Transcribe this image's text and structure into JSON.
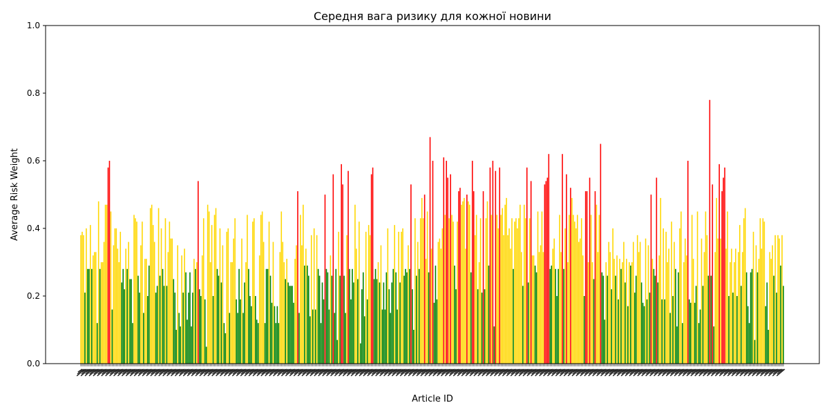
{
  "chart_data": {
    "type": "bar",
    "title": "Середня вага ризику для кожної новини",
    "xlabel": "Article ID",
    "ylabel": "Average Risk Weight",
    "ylim": [
      0,
      1.0
    ],
    "yticks": [
      0.0,
      0.2,
      0.4,
      0.6,
      0.8,
      1.0
    ],
    "grid": false,
    "colors": {
      "low": "#008000",
      "medium": "#FFD700",
      "high": "#FF0000"
    },
    "values": [
      0.38,
      0.39,
      0.38,
      0.21,
      0.4,
      0.28,
      0.28,
      0.41,
      0.28,
      0.32,
      0.33,
      0.33,
      0.12,
      0.48,
      0.28,
      0.3,
      0.3,
      0.36,
      0.47,
      0.47,
      0.58,
      0.6,
      0.45,
      0.16,
      0.35,
      0.4,
      0.4,
      0.34,
      0.3,
      0.39,
      0.24,
      0.28,
      0.22,
      0.34,
      0.28,
      0.36,
      0.25,
      0.25,
      0.12,
      0.44,
      0.43,
      0.42,
      0.26,
      0.21,
      0.35,
      0.42,
      0.15,
      0.31,
      0.31,
      0.2,
      0.29,
      0.46,
      0.47,
      0.41,
      0.36,
      0.21,
      0.23,
      0.46,
      0.26,
      0.4,
      0.28,
      0.23,
      0.43,
      0.23,
      0.33,
      0.42,
      0.37,
      0.37,
      0.25,
      0.21,
      0.1,
      0.35,
      0.15,
      0.11,
      0.32,
      0.21,
      0.34,
      0.27,
      0.13,
      0.21,
      0.27,
      0.11,
      0.21,
      0.31,
      0.28,
      0.3,
      0.54,
      0.22,
      0.2,
      0.32,
      0.43,
      0.19,
      0.05,
      0.47,
      0.45,
      0.3,
      0.41,
      0.2,
      0.44,
      0.46,
      0.28,
      0.26,
      0.4,
      0.24,
      0.35,
      0.12,
      0.09,
      0.39,
      0.4,
      0.15,
      0.3,
      0.3,
      0.37,
      0.43,
      0.19,
      0.15,
      0.28,
      0.19,
      0.37,
      0.15,
      0.24,
      0.3,
      0.44,
      0.28,
      0.2,
      0.17,
      0.42,
      0.43,
      0.2,
      0.13,
      0.12,
      0.32,
      0.44,
      0.45,
      0.36,
      0.12,
      0.28,
      0.28,
      0.42,
      0.26,
      0.18,
      0.36,
      0.17,
      0.12,
      0.17,
      0.12,
      0.33,
      0.45,
      0.36,
      0.3,
      0.25,
      0.31,
      0.24,
      0.23,
      0.23,
      0.23,
      0.18,
      0.31,
      0.35,
      0.51,
      0.15,
      0.44,
      0.35,
      0.47,
      0.29,
      0.34,
      0.29,
      0.26,
      0.14,
      0.38,
      0.16,
      0.4,
      0.16,
      0.38,
      0.28,
      0.26,
      0.12,
      0.24,
      0.19,
      0.5,
      0.28,
      0.27,
      0.16,
      0.32,
      0.26,
      0.56,
      0.15,
      0.28,
      0.07,
      0.39,
      0.26,
      0.59,
      0.53,
      0.26,
      0.15,
      0.38,
      0.57,
      0.28,
      0.19,
      0.28,
      0.24,
      0.47,
      0.34,
      0.25,
      0.42,
      0.06,
      0.22,
      0.27,
      0.14,
      0.39,
      0.19,
      0.41,
      0.38,
      0.56,
      0.58,
      0.25,
      0.28,
      0.25,
      0.3,
      0.24,
      0.35,
      0.16,
      0.24,
      0.16,
      0.27,
      0.4,
      0.22,
      0.15,
      0.24,
      0.28,
      0.41,
      0.27,
      0.16,
      0.39,
      0.24,
      0.39,
      0.4,
      0.26,
      0.28,
      0.27,
      0.35,
      0.28,
      0.53,
      0.22,
      0.1,
      0.43,
      0.26,
      0.36,
      0.28,
      0.43,
      0.49,
      0.43,
      0.5,
      0.31,
      0.45,
      0.27,
      0.67,
      0.34,
      0.6,
      0.18,
      0.29,
      0.19,
      0.36,
      0.37,
      0.34,
      0.4,
      0.61,
      0.44,
      0.6,
      0.55,
      0.43,
      0.56,
      0.44,
      0.42,
      0.29,
      0.22,
      0.42,
      0.51,
      0.52,
      0.47,
      0.48,
      0.49,
      0.34,
      0.5,
      0.48,
      0.47,
      0.27,
      0.6,
      0.51,
      0.38,
      0.44,
      0.22,
      0.3,
      0.43,
      0.21,
      0.51,
      0.22,
      0.43,
      0.48,
      0.29,
      0.58,
      0.44,
      0.6,
      0.11,
      0.57,
      0.44,
      0.4,
      0.58,
      0.44,
      0.46,
      0.38,
      0.47,
      0.49,
      0.38,
      0.4,
      0.34,
      0.43,
      0.28,
      0.42,
      0.43,
      0.4,
      0.43,
      0.47,
      0.33,
      0.23,
      0.47,
      0.43,
      0.58,
      0.24,
      0.43,
      0.54,
      0.32,
      0.32,
      0.29,
      0.27,
      0.45,
      0.33,
      0.35,
      0.45,
      0.33,
      0.53,
      0.54,
      0.55,
      0.62,
      0.28,
      0.29,
      0.34,
      0.37,
      0.28,
      0.2,
      0.28,
      0.44,
      0.33,
      0.62,
      0.28,
      0.4,
      0.56,
      0.3,
      0.44,
      0.52,
      0.49,
      0.44,
      0.42,
      0.4,
      0.44,
      0.36,
      0.37,
      0.43,
      0.32,
      0.2,
      0.51,
      0.51,
      0.3,
      0.55,
      0.44,
      0.3,
      0.25,
      0.51,
      0.47,
      0.33,
      0.44,
      0.65,
      0.27,
      0.26,
      0.13,
      0.3,
      0.26,
      0.36,
      0.33,
      0.22,
      0.4,
      0.31,
      0.26,
      0.32,
      0.19,
      0.31,
      0.28,
      0.3,
      0.36,
      0.24,
      0.31,
      0.17,
      0.3,
      0.29,
      0.3,
      0.36,
      0.21,
      0.26,
      0.38,
      0.33,
      0.36,
      0.24,
      0.18,
      0.17,
      0.37,
      0.19,
      0.35,
      0.21,
      0.5,
      0.31,
      0.28,
      0.26,
      0.55,
      0.24,
      0.32,
      0.49,
      0.19,
      0.4,
      0.19,
      0.39,
      0.3,
      0.34,
      0.15,
      0.42,
      0.2,
      0.36,
      0.28,
      0.11,
      0.27,
      0.4,
      0.45,
      0.12,
      0.3,
      0.37,
      0.32,
      0.6,
      0.19,
      0.18,
      0.44,
      0.31,
      0.18,
      0.23,
      0.45,
      0.12,
      0.16,
      0.37,
      0.23,
      0.33,
      0.45,
      0.38,
      0.26,
      0.78,
      0.26,
      0.53,
      0.11,
      0.33,
      0.49,
      0.37,
      0.59,
      0.37,
      0.51,
      0.55,
      0.58,
      0.34,
      0.45,
      0.2,
      0.3,
      0.34,
      0.21,
      0.3,
      0.34,
      0.2,
      0.33,
      0.41,
      0.23,
      0.33,
      0.43,
      0.46,
      0.27,
      0.17,
      0.12,
      0.27,
      0.28,
      0.39,
      0.07,
      0.35,
      0.27,
      0.31,
      0.43,
      0.34,
      0.43,
      0.42,
      0.17,
      0.24,
      0.1,
      0.33,
      0.31,
      0.35,
      0.26,
      0.38,
      0.21,
      0.38,
      0.37,
      0.29,
      0.38,
      0.23
    ]
  }
}
